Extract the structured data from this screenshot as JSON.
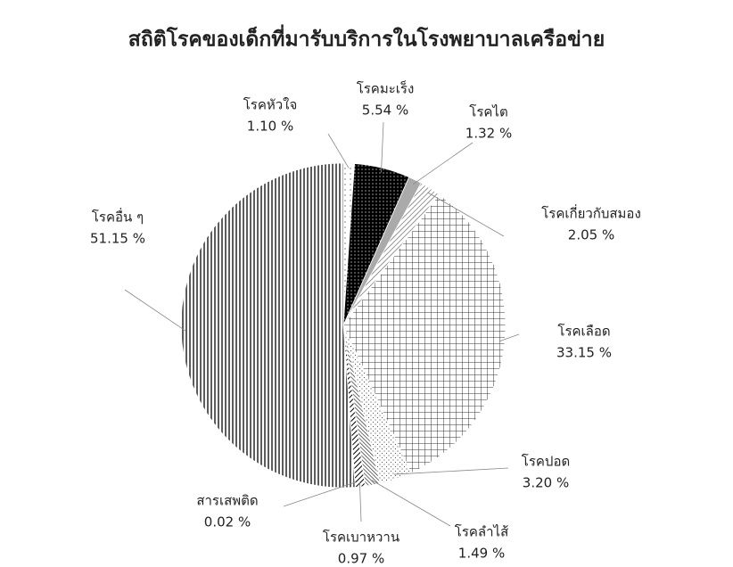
{
  "chart_data": {
    "type": "pie",
    "title": "สถิติโรคของเด็กที่มารับบริการในโรงพยาบาลเครือข่าย",
    "categories": [
      "โรคหัวใจ",
      "โรคมะเร็ง",
      "โรคไต",
      "โรคเกี่ยวกับสมอง",
      "โรคเลือด",
      "โรคปอด",
      "โรคลำไส้",
      "โรคเบาหวาน",
      "สารเสพติด",
      "โรคอื่น ๆ"
    ],
    "values": [
      1.1,
      5.54,
      1.32,
      2.05,
      33.15,
      3.2,
      1.49,
      0.97,
      0.02,
      51.15
    ],
    "value_labels": [
      "1.10 %",
      "5.54 %",
      "1.32 %",
      "2.05 %",
      "33.15 %",
      "3.20 %",
      "1.49 %",
      "0.97 %",
      "0.02 %",
      "51.15 %"
    ]
  }
}
